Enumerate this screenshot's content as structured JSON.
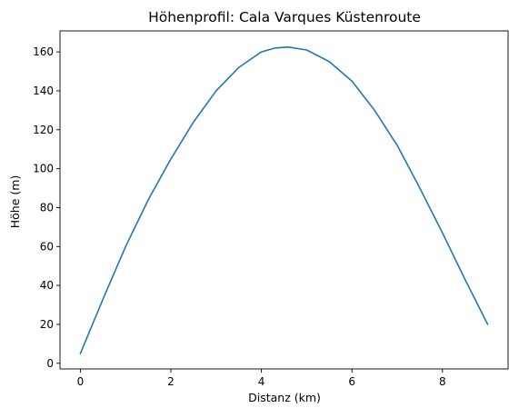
{
  "chart_data": {
    "type": "line",
    "title": "Höhenprofil: Cala Varques Küstenroute",
    "xlabel": "Distanz (km)",
    "ylabel": "Höhe (m)",
    "xlim": [
      -0.45,
      9.45
    ],
    "ylim": [
      -2.9,
      170.8
    ],
    "x_ticks": [
      0,
      2,
      4,
      6,
      8
    ],
    "y_ticks": [
      0,
      20,
      40,
      60,
      80,
      100,
      120,
      140,
      160
    ],
    "grid": false,
    "legend": "none",
    "series": [
      {
        "color": "#1f77b4",
        "x": [
          0,
          0.5,
          1.0,
          1.5,
          2.0,
          2.5,
          3.0,
          3.5,
          4.0,
          4.3,
          4.6,
          5.0,
          5.5,
          6.0,
          6.5,
          7.0,
          7.5,
          8.0,
          8.5,
          9.0
        ],
        "y": [
          5,
          33,
          60,
          84,
          105,
          124,
          140,
          152,
          160,
          162,
          162.5,
          161,
          155,
          145,
          130,
          112,
          90,
          67,
          43,
          20
        ]
      }
    ]
  }
}
